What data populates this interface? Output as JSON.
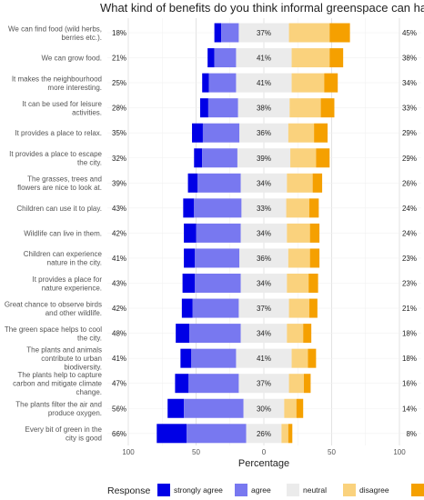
{
  "chart_data": {
    "type": "bar",
    "subtype": "diverging-stacked-likert",
    "title": "What kind of benefits do you think informal greenspace can have?",
    "xlabel": "Percentage",
    "xlim": [
      -100,
      100
    ],
    "xticks": [
      {
        "value": -100,
        "label": "100"
      },
      {
        "value": -50,
        "label": "50"
      },
      {
        "value": 0,
        "label": "0"
      },
      {
        "value": 50,
        "label": "50"
      },
      {
        "value": 100,
        "label": "100"
      }
    ],
    "grid": true,
    "legend": {
      "title": "Response",
      "position": "bottom",
      "entries": [
        {
          "key": "strongly_agree",
          "label": "strongly agree",
          "color": "#0000e6"
        },
        {
          "key": "agree",
          "label": "agree",
          "color": "#7878f0"
        },
        {
          "key": "neutral",
          "label": "neutral",
          "color": "#ebebeb"
        },
        {
          "key": "disagree",
          "label": "disagree",
          "color": "#fad27d"
        },
        {
          "key": "strongly_disagree",
          "label": "strongly disagree",
          "color": "#f5a000"
        }
      ]
    },
    "items": [
      {
        "label": [
          "We can find food (wild herbs,",
          "berries etc.)."
        ],
        "strongly_agree": 5,
        "agree": 13,
        "neutral": 37,
        "disagree": 30,
        "strongly_disagree": 15,
        "left_label": "18%",
        "mid_label": "37%",
        "right_label": "45%"
      },
      {
        "label": [
          "We can grow food."
        ],
        "strongly_agree": 5,
        "agree": 16,
        "neutral": 41,
        "disagree": 28,
        "strongly_disagree": 10,
        "left_label": "21%",
        "mid_label": "41%",
        "right_label": "38%"
      },
      {
        "label": [
          "It makes the neighbourhood",
          "more interesting."
        ],
        "strongly_agree": 5,
        "agree": 20,
        "neutral": 41,
        "disagree": 24,
        "strongly_disagree": 10,
        "left_label": "25%",
        "mid_label": "41%",
        "right_label": "34%"
      },
      {
        "label": [
          "It can be used for leisure",
          "activities."
        ],
        "strongly_agree": 6,
        "agree": 22,
        "neutral": 38,
        "disagree": 23,
        "strongly_disagree": 10,
        "left_label": "28%",
        "mid_label": "38%",
        "right_label": "33%"
      },
      {
        "label": [
          "It provides a place to relax."
        ],
        "strongly_agree": 8,
        "agree": 27,
        "neutral": 36,
        "disagree": 19,
        "strongly_disagree": 10,
        "left_label": "35%",
        "mid_label": "36%",
        "right_label": "29%"
      },
      {
        "label": [
          "It provides a place to escape",
          "the city."
        ],
        "strongly_agree": 6,
        "agree": 26,
        "neutral": 39,
        "disagree": 19,
        "strongly_disagree": 10,
        "left_label": "32%",
        "mid_label": "39%",
        "right_label": "29%"
      },
      {
        "label": [
          "The grasses, trees and",
          "flowers are nice to look at."
        ],
        "strongly_agree": 7,
        "agree": 32,
        "neutral": 34,
        "disagree": 19,
        "strongly_disagree": 7,
        "left_label": "39%",
        "mid_label": "34%",
        "right_label": "26%"
      },
      {
        "label": [
          "Children can use it to play."
        ],
        "strongly_agree": 8,
        "agree": 35,
        "neutral": 33,
        "disagree": 17,
        "strongly_disagree": 7,
        "left_label": "43%",
        "mid_label": "33%",
        "right_label": "24%"
      },
      {
        "label": [
          "Wildlife can live in them."
        ],
        "strongly_agree": 9,
        "agree": 33,
        "neutral": 34,
        "disagree": 17,
        "strongly_disagree": 7,
        "left_label": "42%",
        "mid_label": "34%",
        "right_label": "24%"
      },
      {
        "label": [
          "Children can experience",
          "nature in the city."
        ],
        "strongly_agree": 8,
        "agree": 33,
        "neutral": 36,
        "disagree": 16,
        "strongly_disagree": 7,
        "left_label": "41%",
        "mid_label": "36%",
        "right_label": "23%"
      },
      {
        "label": [
          "It provides a place for",
          "nature experience."
        ],
        "strongly_agree": 9,
        "agree": 34,
        "neutral": 34,
        "disagree": 16,
        "strongly_disagree": 7,
        "left_label": "43%",
        "mid_label": "34%",
        "right_label": "23%"
      },
      {
        "label": [
          "Great chance to observe birds",
          "and other wildlife."
        ],
        "strongly_agree": 8,
        "agree": 34,
        "neutral": 37,
        "disagree": 15,
        "strongly_disagree": 6,
        "left_label": "42%",
        "mid_label": "37%",
        "right_label": "21%"
      },
      {
        "label": [
          "The green space helps to cool",
          "the city."
        ],
        "strongly_agree": 10,
        "agree": 38,
        "neutral": 34,
        "disagree": 12,
        "strongly_disagree": 6,
        "left_label": "48%",
        "mid_label": "34%",
        "right_label": "18%"
      },
      {
        "label": [
          "The plants and animals",
          "contribute to urban",
          "biodiversity."
        ],
        "strongly_agree": 8,
        "agree": 33,
        "neutral": 41,
        "disagree": 12,
        "strongly_disagree": 6,
        "left_label": "41%",
        "mid_label": "41%",
        "right_label": "18%"
      },
      {
        "label": [
          "The plants help to capture",
          "carbon and mitigate climate",
          "change."
        ],
        "strongly_agree": 10,
        "agree": 37,
        "neutral": 37,
        "disagree": 11,
        "strongly_disagree": 5,
        "left_label": "47%",
        "mid_label": "37%",
        "right_label": "16%"
      },
      {
        "label": [
          "The plants filter the air and",
          "produce oxygen."
        ],
        "strongly_agree": 12,
        "agree": 44,
        "neutral": 30,
        "disagree": 9,
        "strongly_disagree": 5,
        "left_label": "56%",
        "mid_label": "30%",
        "right_label": "14%"
      },
      {
        "label": [
          "Every bit of green in the",
          "city is good"
        ],
        "strongly_agree": 22,
        "agree": 44,
        "neutral": 26,
        "disagree": 5,
        "strongly_disagree": 3,
        "left_label": "66%",
        "mid_label": "26%",
        "right_label": "8%"
      }
    ]
  }
}
